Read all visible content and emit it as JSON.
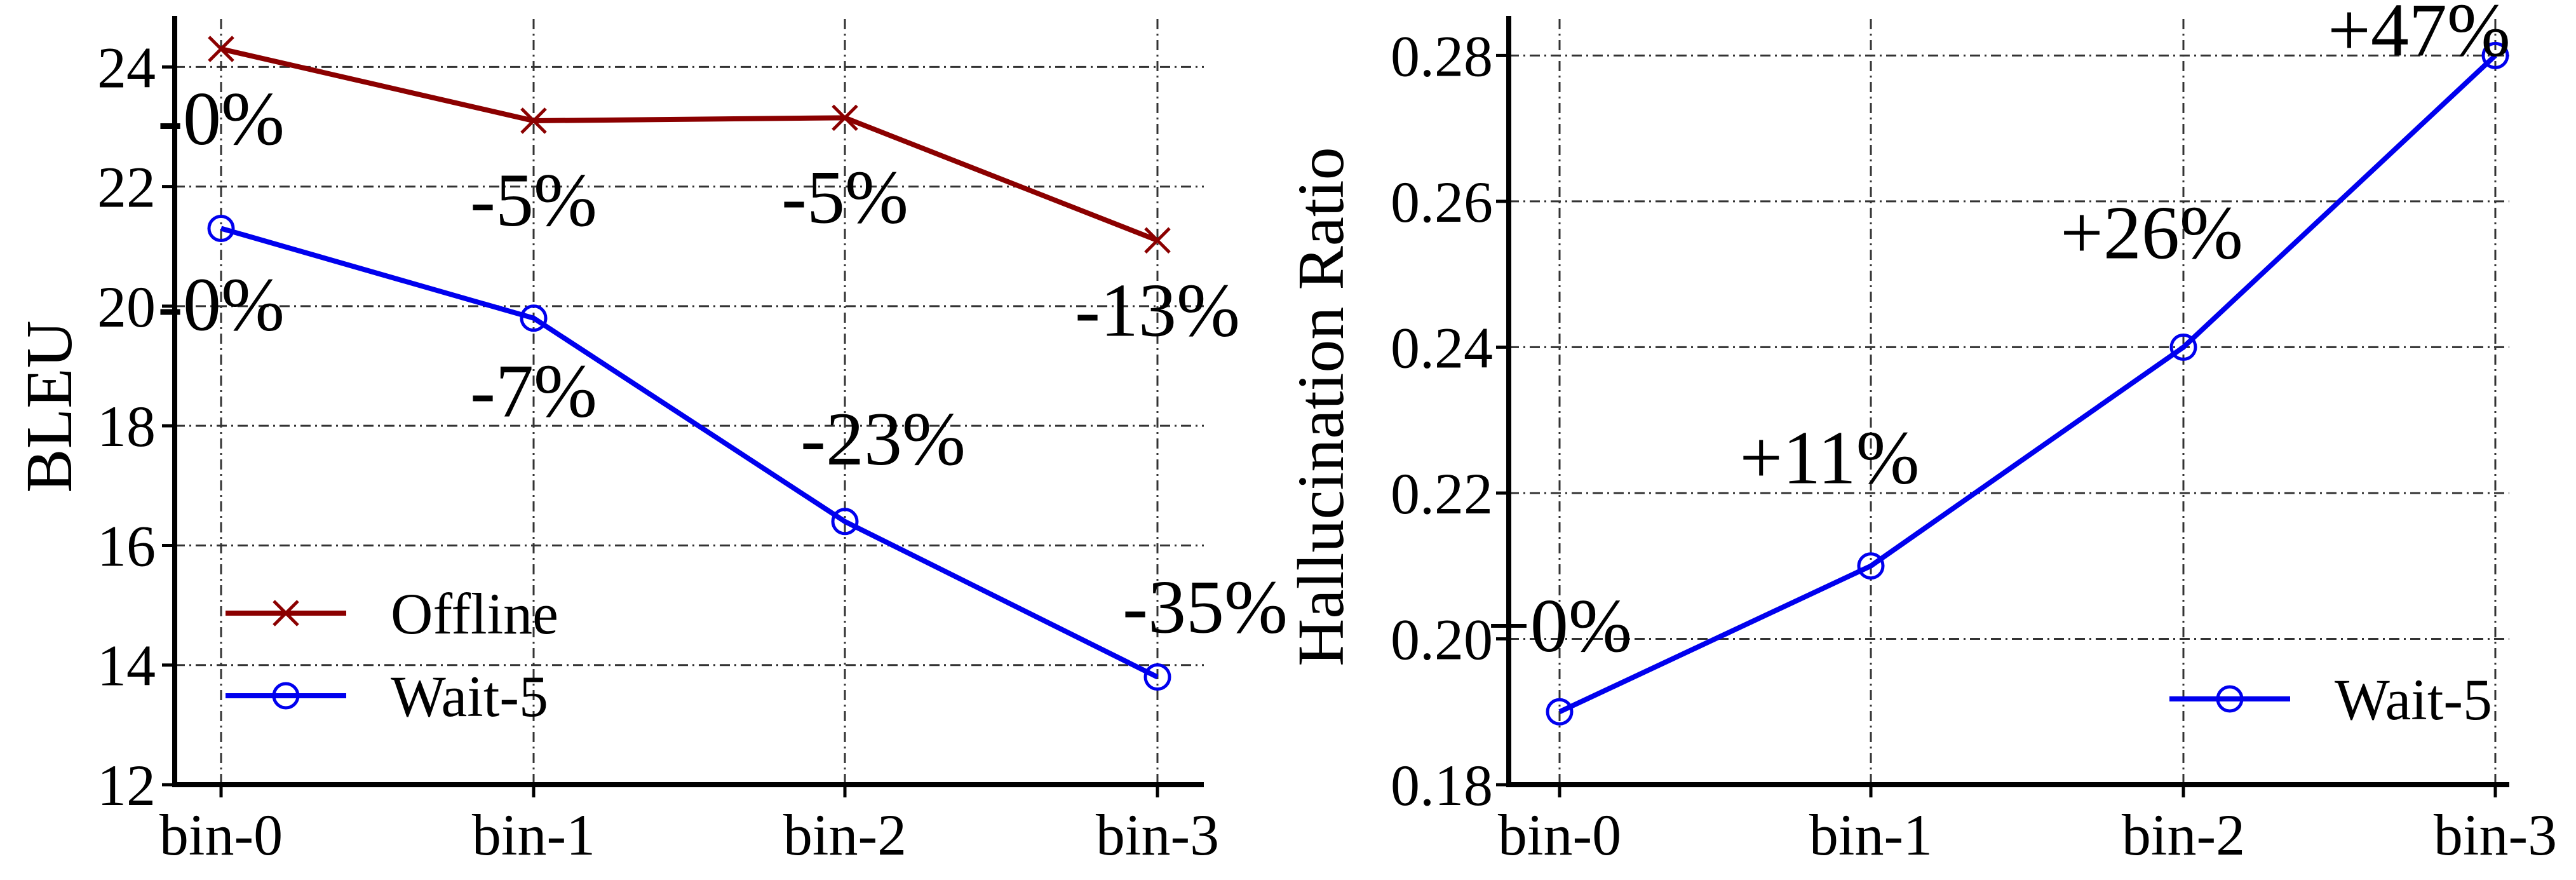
{
  "chart_data": [
    {
      "type": "line",
      "categories": [
        "bin-0",
        "bin-1",
        "bin-2",
        "bin-3"
      ],
      "ylabel": "BLEU",
      "xlabel": "",
      "title": "",
      "ylim": [
        12,
        24.8
      ],
      "yticks": [
        "12",
        "14",
        "16",
        "18",
        "20",
        "22",
        "24"
      ],
      "grid": true,
      "legend_position": "lower-left",
      "series": [
        {
          "name": "Offline",
          "marker": "x",
          "color": "#8b0000",
          "values": [
            24.3,
            23.1,
            23.15,
            21.1
          ],
          "annotations": [
            "-0%",
            "-5%",
            "-5%",
            "-13%"
          ]
        },
        {
          "name": "Wait-5",
          "marker": "circle",
          "color": "#0000ee",
          "values": [
            21.3,
            19.8,
            16.4,
            13.8
          ],
          "annotations": [
            "-0%",
            "-7%",
            "-23%",
            "-35%"
          ]
        }
      ]
    },
    {
      "type": "line",
      "categories": [
        "bin-0",
        "bin-1",
        "bin-2",
        "bin-3"
      ],
      "ylabel": "Hallucination Ratio",
      "xlabel": "",
      "title": "",
      "ylim": [
        0.18,
        0.285
      ],
      "yticks": [
        "0.18",
        "0.20",
        "0.22",
        "0.24",
        "0.26",
        "0.28"
      ],
      "grid": true,
      "legend_position": "lower-right",
      "series": [
        {
          "name": "Wait-5",
          "marker": "circle",
          "color": "#0000ee",
          "values": [
            0.19,
            0.21,
            0.24,
            0.28
          ],
          "annotations": [
            "+0%",
            "+11%",
            "+26%",
            "+47%"
          ]
        }
      ]
    }
  ]
}
